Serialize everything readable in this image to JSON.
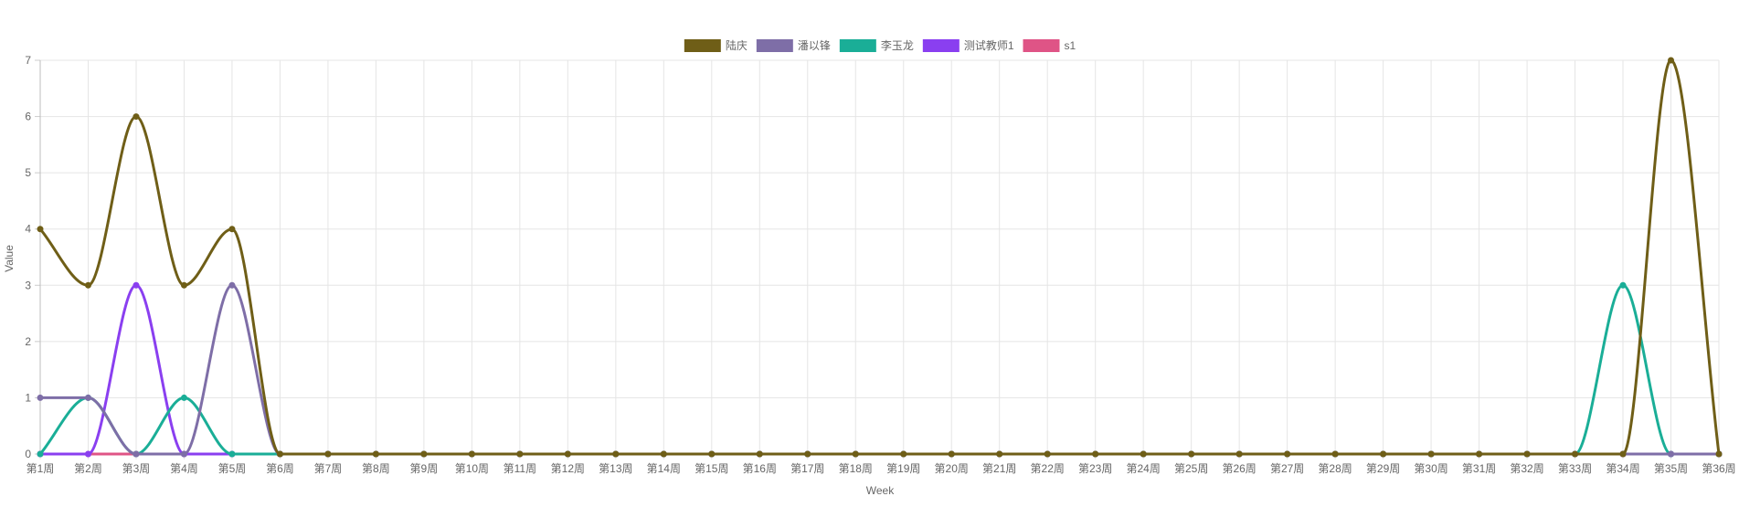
{
  "chart_data": {
    "type": "line",
    "xlabel": "Week",
    "ylabel": "Value",
    "ylim": [
      0,
      7
    ],
    "yticks": [
      0,
      1,
      2,
      3,
      4,
      5,
      6,
      7
    ],
    "grid": true,
    "legend_position": "top-center",
    "categories": [
      "第1周",
      "第2周",
      "第3周",
      "第4周",
      "第5周",
      "第6周",
      "第7周",
      "第8周",
      "第9周",
      "第10周",
      "第11周",
      "第12周",
      "第13周",
      "第14周",
      "第15周",
      "第16周",
      "第17周",
      "第18周",
      "第19周",
      "第20周",
      "第21周",
      "第22周",
      "第23周",
      "第24周",
      "第25周",
      "第26周",
      "第27周",
      "第28周",
      "第29周",
      "第30周",
      "第31周",
      "第32周",
      "第33周",
      "第34周",
      "第35周",
      "第36周"
    ],
    "series": [
      {
        "name": "陆庆",
        "color": "#6f5e17",
        "values": [
          4,
          3,
          6,
          3,
          4,
          0,
          0,
          0,
          0,
          0,
          0,
          0,
          0,
          0,
          0,
          0,
          0,
          0,
          0,
          0,
          0,
          0,
          0,
          0,
          0,
          0,
          0,
          0,
          0,
          0,
          0,
          0,
          0,
          0,
          7,
          0
        ]
      },
      {
        "name": "潘以锋",
        "color": "#7e6ea7",
        "values": [
          1,
          1,
          0,
          0,
          3,
          0,
          0,
          0,
          0,
          0,
          0,
          0,
          0,
          0,
          0,
          0,
          0,
          0,
          0,
          0,
          0,
          0,
          0,
          0,
          0,
          0,
          0,
          0,
          0,
          0,
          0,
          0,
          0,
          0,
          0,
          0
        ]
      },
      {
        "name": "李玉龙",
        "color": "#1aae97",
        "values": [
          0,
          1,
          0,
          1,
          0,
          0,
          0,
          0,
          0,
          0,
          0,
          0,
          0,
          0,
          0,
          0,
          0,
          0,
          0,
          0,
          0,
          0,
          0,
          0,
          0,
          0,
          0,
          0,
          0,
          0,
          0,
          0,
          0,
          3,
          0,
          0
        ]
      },
      {
        "name": "测试教师1",
        "color": "#8a3ff0",
        "values": [
          0,
          0,
          3,
          0,
          0,
          0,
          0,
          0,
          0,
          0,
          0,
          0,
          0,
          0,
          0,
          0,
          0,
          0,
          0,
          0,
          0,
          0,
          0,
          0,
          0,
          0,
          0,
          0,
          0,
          0,
          0,
          0,
          0,
          0,
          0,
          0
        ]
      },
      {
        "name": "s1",
        "color": "#df5486",
        "values": [
          0,
          0,
          0,
          0,
          0,
          0,
          0,
          0,
          0,
          0,
          0,
          0,
          0,
          0,
          0,
          0,
          0,
          0,
          0,
          0,
          0,
          0,
          0,
          0,
          0,
          0,
          0,
          0,
          0,
          0,
          0,
          0,
          0,
          0,
          0,
          0
        ]
      }
    ]
  }
}
